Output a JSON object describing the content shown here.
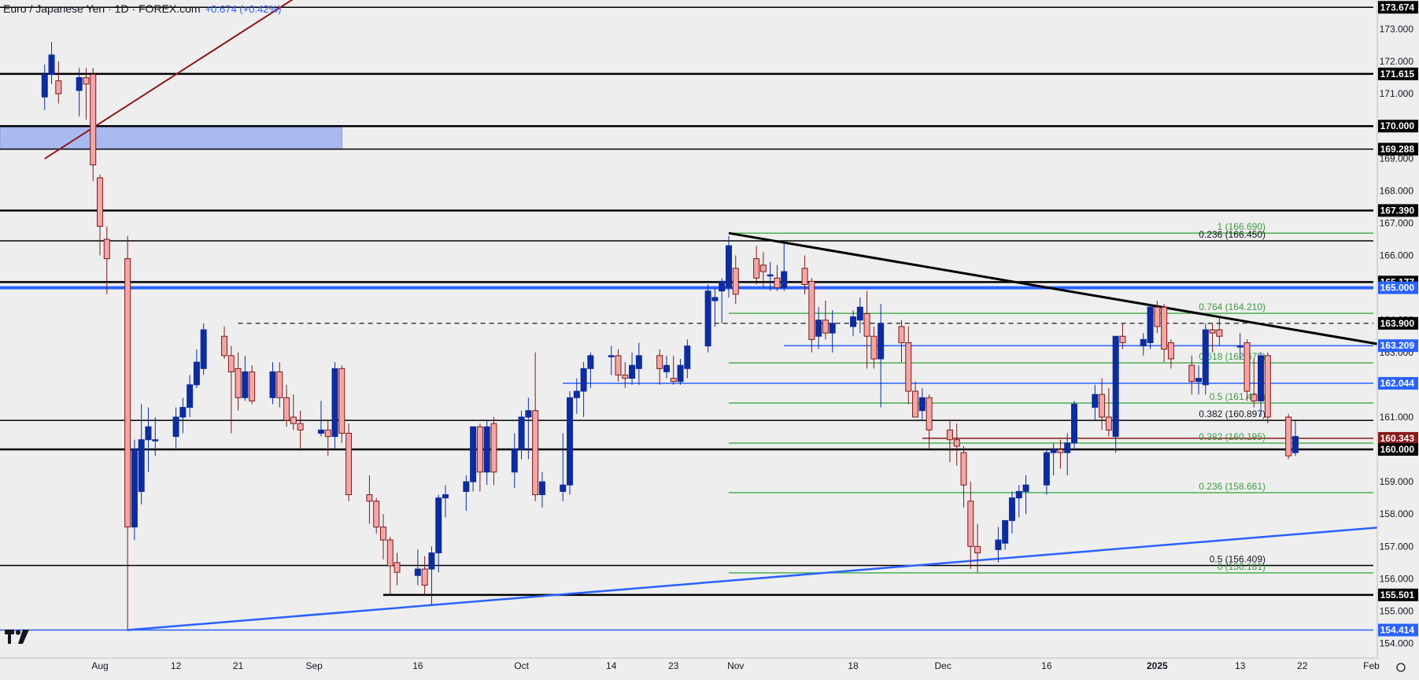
{
  "header": {
    "title": "Euro / Japanese Yen · 1D · FOREX.com",
    "change": "+0.674 (+0.42%)"
  },
  "colors": {
    "background": "#eeeeee",
    "bull_candle": "#0d2c9e",
    "bear_candle": "#f4a6a6",
    "bear_outline": "#7a1a1a",
    "blue_line": "#2962ff",
    "fib_green": "#4caf50",
    "support": "#000000",
    "maroon": "#8b1a1a"
  },
  "icons": {
    "logo": "tradingview-logo-icon",
    "settings": "settings-icon"
  },
  "chart_data": {
    "type": "candlestick",
    "symbol": "EURJPY",
    "timeframe": "1D",
    "y_axis": {
      "range": [
        153.55,
        173.9
      ],
      "ticks": [
        "173.000",
        "172.000",
        "171.000",
        "169.000",
        "168.000",
        "167.000",
        "166.000",
        "164.000",
        "163.000",
        "162.000",
        "161.000",
        "159.000",
        "158.000",
        "157.000",
        "156.000",
        "155.000",
        "154.000"
      ]
    },
    "x_axis": {
      "labels": [
        {
          "date": "2024-08-01",
          "label": "Aug"
        },
        {
          "date": "2024-08-12",
          "label": "12"
        },
        {
          "date": "2024-08-21",
          "label": "21"
        },
        {
          "date": "2024-09-01",
          "label": "Sep"
        },
        {
          "date": "2024-09-16",
          "label": "16"
        },
        {
          "date": "2024-10-01",
          "label": "Oct"
        },
        {
          "date": "2024-10-14",
          "label": "14"
        },
        {
          "date": "2024-10-23",
          "label": "23"
        },
        {
          "date": "2024-11-01",
          "label": "Nov"
        },
        {
          "date": "2024-11-18",
          "label": "18"
        },
        {
          "date": "2024-12-01",
          "label": "Dec"
        },
        {
          "date": "2024-12-16",
          "label": "16"
        },
        {
          "date": "2025-01-01",
          "label": "2025"
        },
        {
          "date": "2025-01-13",
          "label": "13"
        },
        {
          "date": "2025-01-22",
          "label": "22"
        },
        {
          "date": "2025-02-01",
          "label": "Feb"
        }
      ]
    },
    "price_labels": [
      {
        "value": 173.674,
        "text": "173.674",
        "style": "black"
      },
      {
        "value": 171.615,
        "text": "171.615",
        "style": "black"
      },
      {
        "value": 170.0,
        "text": "170.000",
        "style": "black"
      },
      {
        "value": 169.288,
        "text": "169.288",
        "style": "black"
      },
      {
        "value": 167.39,
        "text": "167.390",
        "style": "black"
      },
      {
        "value": 165.177,
        "text": "165.177",
        "style": "black"
      },
      {
        "value": 165.0,
        "text": "165.000",
        "style": "blue"
      },
      {
        "value": 163.9,
        "text": "163.900",
        "style": "black"
      },
      {
        "value": 163.209,
        "text": "163.209",
        "style": "blue"
      },
      {
        "value": 162.044,
        "text": "162.044",
        "style": "blue"
      },
      {
        "value": 160.343,
        "text": "160.343",
        "style": "maroon"
      },
      {
        "value": 160.0,
        "text": "160.000",
        "style": "black"
      },
      {
        "value": 155.501,
        "text": "155.501",
        "style": "black"
      },
      {
        "value": 154.414,
        "text": "154.414",
        "style": "blue"
      }
    ],
    "horizontal_levels": [
      173.674,
      171.615,
      170.0,
      169.288,
      167.39,
      166.45,
      165.177,
      160.897,
      160.0,
      156.409
    ],
    "blue_levels": [
      165.0,
      154.414
    ],
    "dashed_level": {
      "value": 163.9,
      "from": "2024-08-21"
    },
    "zone": {
      "from": 170.0,
      "to": 169.288,
      "end_date": "2024-09-05"
    },
    "fib_levels": [
      {
        "value": 166.69,
        "text": "1 (166.690)"
      },
      {
        "value": 164.21,
        "text": "0.764 (164.210)"
      },
      {
        "value": 162.675,
        "text": "0.618 (162.675)"
      },
      {
        "value": 161.435,
        "text": "0.5 (161.435)"
      },
      {
        "value": 160.195,
        "text": "0.382 (160.195)"
      },
      {
        "value": 158.661,
        "text": "0.236 (158.661)"
      },
      {
        "value": 156.181,
        "text": "0 (156.181)"
      }
    ],
    "fib_start_date": "2024-10-31",
    "black_fib_labels": [
      {
        "value": 166.45,
        "text": "0.236 (166.450)"
      },
      {
        "value": 160.897,
        "text": "0.382 (160.897)"
      },
      {
        "value": 156.409,
        "text": "0.5 (156.409)"
      }
    ],
    "blue_segments": [
      {
        "value": 163.209,
        "from": "2024-11-08"
      },
      {
        "value": 162.044,
        "from": "2024-10-07"
      }
    ],
    "maroon_segment": {
      "value": 160.343,
      "from": "2024-11-28"
    },
    "support_segment": {
      "value": 155.501,
      "from": "2024-09-11"
    },
    "trendlines": [
      {
        "name": "maroon",
        "from": [
          "2024-07-24",
          168.99
        ],
        "to": [
          "2024-08-30",
          174.07
        ]
      },
      {
        "name": "descending",
        "from": [
          "2024-10-31",
          166.69
        ],
        "to": [
          "2025-02-20",
          162.6
        ]
      },
      {
        "name": "rising",
        "from": [
          "2024-08-05",
          154.414
        ],
        "to": [
          "2025-02-20",
          157.9
        ]
      }
    ],
    "candles": [
      [
        "2024-07-24",
        170.9,
        171.9,
        170.5,
        171.6
      ],
      [
        "2024-07-25",
        171.6,
        172.6,
        171.3,
        172.2
      ],
      [
        "2024-07-26",
        171.4,
        172.0,
        170.7,
        171.0
      ],
      [
        "2024-07-29",
        171.1,
        171.8,
        170.3,
        171.5
      ],
      [
        "2024-07-30",
        171.5,
        171.8,
        170.2,
        171.3
      ],
      [
        "2024-07-31",
        171.6,
        171.8,
        168.3,
        168.8
      ],
      [
        "2024-08-01",
        168.4,
        168.5,
        166.0,
        166.9
      ],
      [
        "2024-08-02",
        166.5,
        166.9,
        164.8,
        165.9
      ],
      [
        "2024-08-05",
        165.9,
        166.6,
        154.4,
        157.6
      ],
      [
        "2024-08-06",
        157.6,
        160.3,
        157.2,
        160.0
      ],
      [
        "2024-08-07",
        158.7,
        161.4,
        158.3,
        160.3
      ],
      [
        "2024-08-08",
        160.3,
        161.3,
        159.3,
        160.7
      ],
      [
        "2024-08-09",
        160.3,
        161.0,
        159.8,
        160.3
      ],
      [
        "2024-08-12",
        160.4,
        161.3,
        160.0,
        161.0
      ],
      [
        "2024-08-13",
        161.0,
        161.6,
        160.5,
        161.3
      ],
      [
        "2024-08-14",
        161.3,
        162.3,
        161.0,
        162.0
      ],
      [
        "2024-08-15",
        162.0,
        163.1,
        161.9,
        162.7
      ],
      [
        "2024-08-16",
        162.5,
        163.9,
        162.3,
        163.7
      ],
      [
        "2024-08-19",
        163.5,
        163.8,
        162.8,
        162.9
      ],
      [
        "2024-08-20",
        162.9,
        163.2,
        160.5,
        162.4
      ],
      [
        "2024-08-21",
        162.5,
        163.0,
        161.2,
        161.6
      ],
      [
        "2024-08-22",
        161.6,
        162.9,
        161.5,
        162.4
      ],
      [
        "2024-08-23",
        162.4,
        162.6,
        161.4,
        161.5
      ],
      [
        "2024-08-26",
        161.6,
        162.7,
        161.4,
        162.4
      ],
      [
        "2024-08-27",
        162.4,
        162.7,
        161.3,
        161.6
      ],
      [
        "2024-08-28",
        161.6,
        162.0,
        160.7,
        160.9
      ],
      [
        "2024-08-29",
        161.0,
        161.7,
        160.6,
        160.8
      ],
      [
        "2024-08-30",
        160.8,
        161.2,
        160.0,
        160.6
      ],
      [
        "2024-09-02",
        160.5,
        161.5,
        160.4,
        160.6
      ],
      [
        "2024-09-03",
        160.6,
        160.9,
        159.8,
        160.4
      ],
      [
        "2024-09-04",
        160.4,
        162.7,
        160.0,
        162.5
      ],
      [
        "2024-09-05",
        162.5,
        162.6,
        160.2,
        160.5
      ],
      [
        "2024-09-06",
        160.5,
        160.8,
        158.4,
        158.6
      ],
      [
        "2024-09-09",
        158.6,
        159.2,
        157.7,
        158.4
      ],
      [
        "2024-09-10",
        158.4,
        158.5,
        157.4,
        157.6
      ],
      [
        "2024-09-11",
        157.6,
        158.0,
        156.6,
        157.2
      ],
      [
        "2024-09-12",
        157.2,
        157.3,
        155.5,
        156.4
      ],
      [
        "2024-09-13",
        156.5,
        156.8,
        155.8,
        156.2
      ],
      [
        "2024-09-16",
        156.1,
        156.9,
        155.8,
        156.3
      ],
      [
        "2024-09-17",
        156.3,
        156.7,
        155.5,
        155.8
      ],
      [
        "2024-09-18",
        156.3,
        157.0,
        155.2,
        156.8
      ],
      [
        "2024-09-19",
        156.8,
        158.6,
        156.2,
        158.5
      ],
      [
        "2024-09-20",
        158.5,
        158.9,
        157.9,
        158.6
      ],
      [
        "2024-09-23",
        158.7,
        159.2,
        158.1,
        159.0
      ],
      [
        "2024-09-24",
        159.0,
        160.7,
        158.7,
        160.7
      ],
      [
        "2024-09-25",
        160.7,
        160.8,
        158.7,
        159.3
      ],
      [
        "2024-09-26",
        159.3,
        160.9,
        158.9,
        160.7
      ],
      [
        "2024-09-27",
        160.8,
        161.0,
        158.9,
        159.3
      ],
      [
        "2024-09-30",
        159.3,
        160.5,
        158.8,
        160.0
      ],
      [
        "2024-10-01",
        160.0,
        161.2,
        159.7,
        161.0
      ],
      [
        "2024-10-02",
        161.0,
        161.6,
        159.7,
        161.2
      ],
      [
        "2024-10-03",
        161.2,
        163.0,
        158.4,
        158.6
      ],
      [
        "2024-10-04",
        158.6,
        159.3,
        158.2,
        159.0
      ],
      [
        "2024-10-07",
        158.7,
        160.5,
        158.4,
        158.9
      ],
      [
        "2024-10-08",
        158.9,
        161.8,
        158.6,
        161.6
      ],
      [
        "2024-10-09",
        161.6,
        162.2,
        161.1,
        161.8
      ],
      [
        "2024-10-10",
        161.8,
        162.7,
        161.0,
        162.5
      ],
      [
        "2024-10-11",
        162.5,
        163.0,
        161.9,
        162.9
      ],
      [
        "2024-10-14",
        162.9,
        163.2,
        162.3,
        162.9
      ],
      [
        "2024-10-15",
        162.9,
        163.1,
        162.1,
        162.3
      ],
      [
        "2024-10-16",
        162.3,
        162.7,
        161.9,
        162.2
      ],
      [
        "2024-10-17",
        162.2,
        163.0,
        162.0,
        162.6
      ],
      [
        "2024-10-18",
        162.5,
        163.3,
        162.0,
        162.9
      ],
      [
        "2024-10-21",
        162.9,
        163.1,
        162.0,
        162.5
      ],
      [
        "2024-10-22",
        162.4,
        162.9,
        162.2,
        162.6
      ],
      [
        "2024-10-23",
        162.2,
        162.9,
        162.0,
        162.1
      ],
      [
        "2024-10-24",
        162.1,
        162.8,
        162.0,
        162.6
      ],
      [
        "2024-10-25",
        162.5,
        163.4,
        162.2,
        163.2
      ],
      [
        "2024-10-28",
        163.2,
        165.1,
        163.0,
        164.9
      ],
      [
        "2024-10-29",
        164.6,
        165.0,
        163.8,
        164.7
      ],
      [
        "2024-10-30",
        164.9,
        165.3,
        163.9,
        165.2
      ],
      [
        "2024-10-31",
        165.0,
        166.6,
        164.7,
        166.3
      ],
      [
        "2024-11-01",
        165.6,
        166.0,
        164.5,
        164.8
      ],
      [
        "2024-11-04",
        165.9,
        166.3,
        165.1,
        165.3
      ],
      [
        "2024-11-05",
        165.7,
        166.1,
        165.0,
        165.5
      ],
      [
        "2024-11-06",
        165.4,
        165.8,
        164.9,
        165.4
      ],
      [
        "2024-11-07",
        165.3,
        165.7,
        164.9,
        165.0
      ],
      [
        "2024-11-08",
        165.0,
        166.4,
        164.9,
        165.5
      ],
      [
        "2024-11-11",
        165.6,
        166.0,
        164.8,
        165.1
      ],
      [
        "2024-11-12",
        165.2,
        165.3,
        163.0,
        163.4
      ],
      [
        "2024-11-13",
        163.5,
        164.4,
        163.1,
        164.0
      ],
      [
        "2024-11-14",
        164.0,
        164.6,
        163.4,
        163.6
      ],
      [
        "2024-11-15",
        163.6,
        164.3,
        163.0,
        163.9
      ],
      [
        "2024-11-18",
        163.8,
        164.3,
        163.5,
        164.1
      ],
      [
        "2024-11-19",
        164.0,
        164.7,
        163.6,
        164.4
      ],
      [
        "2024-11-20",
        164.2,
        164.9,
        162.5,
        163.5
      ],
      [
        "2024-11-21",
        163.5,
        163.8,
        162.5,
        162.8
      ],
      [
        "2024-11-22",
        162.8,
        164.5,
        161.3,
        163.9
      ],
      [
        "2024-11-25",
        163.8,
        164.0,
        162.7,
        163.3
      ],
      [
        "2024-11-26",
        163.3,
        163.8,
        161.4,
        161.8
      ],
      [
        "2024-11-27",
        161.8,
        162.1,
        161.0,
        161.0
      ],
      [
        "2024-11-28",
        161.2,
        161.9,
        160.9,
        161.6
      ],
      [
        "2024-11-29",
        161.6,
        161.7,
        160.0,
        160.6
      ],
      [
        "2024-12-02",
        160.6,
        160.9,
        159.6,
        160.3
      ],
      [
        "2024-12-03",
        160.3,
        160.8,
        159.5,
        160.1
      ],
      [
        "2024-12-04",
        159.9,
        160.1,
        158.2,
        158.9
      ],
      [
        "2024-12-05",
        158.4,
        159.0,
        156.3,
        157.0
      ],
      [
        "2024-12-06",
        157.0,
        157.7,
        156.2,
        156.8
      ],
      [
        "2024-12-09",
        156.9,
        157.6,
        156.5,
        157.2
      ],
      [
        "2024-12-10",
        157.1,
        157.8,
        156.9,
        157.8
      ],
      [
        "2024-12-11",
        157.8,
        158.7,
        157.4,
        158.5
      ],
      [
        "2024-12-12",
        158.5,
        158.9,
        157.9,
        158.7
      ],
      [
        "2024-12-13",
        158.7,
        159.2,
        158.0,
        158.9
      ],
      [
        "2024-12-16",
        158.9,
        160.0,
        158.6,
        159.9
      ],
      [
        "2024-12-17",
        159.9,
        160.2,
        159.2,
        160.0
      ],
      [
        "2024-12-18",
        160.0,
        160.3,
        159.4,
        159.9
      ],
      [
        "2024-12-19",
        159.9,
        160.5,
        159.2,
        160.2
      ],
      [
        "2024-12-20",
        160.2,
        161.5,
        160.0,
        161.4
      ],
      [
        "2024-12-23",
        161.3,
        162.0,
        160.9,
        161.7
      ],
      [
        "2024-12-24",
        161.7,
        162.2,
        160.6,
        161.0
      ],
      [
        "2024-12-25",
        161.0,
        161.9,
        160.4,
        160.6
      ],
      [
        "2024-12-26",
        160.4,
        163.5,
        159.9,
        163.5
      ],
      [
        "2024-12-27",
        163.5,
        163.9,
        163.1,
        163.3
      ],
      [
        "2024-12-30",
        163.2,
        163.6,
        162.9,
        163.4
      ],
      [
        "2024-12-31",
        163.3,
        164.5,
        163.1,
        164.4
      ],
      [
        "2025-01-01",
        164.4,
        164.6,
        163.6,
        163.8
      ],
      [
        "2025-01-02",
        164.4,
        164.5,
        162.7,
        163.1
      ],
      [
        "2025-01-03",
        163.3,
        163.4,
        162.5,
        162.8
      ],
      [
        "2025-01-06",
        162.6,
        162.9,
        161.7,
        162.1
      ],
      [
        "2025-01-07",
        162.1,
        162.6,
        161.7,
        162.2
      ],
      [
        "2025-01-08",
        162.0,
        163.9,
        161.7,
        163.7
      ],
      [
        "2025-01-09",
        163.7,
        163.9,
        163.0,
        163.6
      ],
      [
        "2025-01-10",
        163.7,
        164.1,
        163.2,
        163.5
      ],
      [
        "2025-01-13",
        163.2,
        163.6,
        162.8,
        163.2
      ],
      [
        "2025-01-14",
        163.3,
        163.4,
        161.5,
        161.8
      ],
      [
        "2025-01-15",
        161.7,
        162.8,
        161.3,
        161.5
      ],
      [
        "2025-01-16",
        161.5,
        163.0,
        161.0,
        162.9
      ],
      [
        "2025-01-17",
        162.9,
        163.0,
        160.8,
        161.0
      ],
      [
        "2025-01-20",
        161.0,
        161.1,
        159.7,
        159.8
      ],
      [
        "2025-01-21",
        159.9,
        160.9,
        159.8,
        160.4
      ]
    ]
  }
}
